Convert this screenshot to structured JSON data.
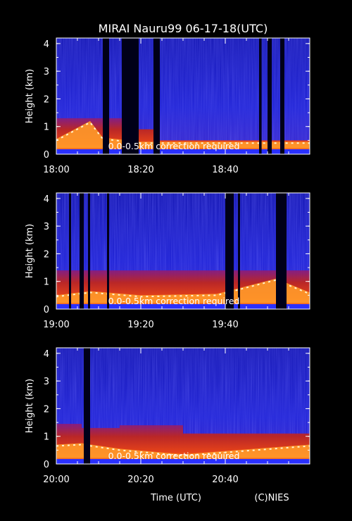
{
  "chart_data": {
    "type": "heatmap",
    "title": "MIRAI Nauru99 06-17-18(UTC)",
    "xlabel": "Time (UTC)",
    "credit": "(C)NIES",
    "colors": {
      "background": "#000000",
      "text": "#ffffff",
      "scale": [
        "#000010",
        "#0a0a8a",
        "#1e22d8",
        "#7a1aa0",
        "#d82a1a",
        "#ff6a14",
        "#ffd070",
        "#ffffff"
      ]
    },
    "panels": [
      {
        "ylabel": "Height (km)",
        "ylim": [
          0,
          4.2
        ],
        "yticks": [
          "0",
          "1",
          "2",
          "3",
          "4"
        ],
        "xlim": [
          "18:00",
          "19:00"
        ],
        "xticks": [
          "18:00",
          "18:20",
          "18:40"
        ],
        "annotation": "0.0-0.5km correction required",
        "gaps": [
          [
            11,
            12.5
          ],
          [
            15.5,
            19.5
          ],
          [
            23,
            24.5
          ],
          [
            48,
            48.6
          ],
          [
            50,
            51
          ],
          [
            53,
            54
          ]
        ],
        "layer_top_km": [
          [
            0,
            1.3
          ],
          [
            15,
            1.3
          ],
          [
            16,
            0.5
          ],
          [
            19.5,
            0.9
          ],
          [
            23,
            0.5
          ],
          [
            60,
            0.5
          ]
        ],
        "bright_km": [
          [
            0,
            0.55
          ],
          [
            8,
            1.2
          ],
          [
            11,
            0.6
          ],
          [
            20,
            0.45
          ],
          [
            60,
            0.45
          ]
        ]
      },
      {
        "ylabel": "Height (km)",
        "ylim": [
          0,
          4.2
        ],
        "yticks": [
          "0",
          "1",
          "2",
          "3",
          "4"
        ],
        "xlim": [
          "19:00",
          "20:00"
        ],
        "xticks": [
          "19:00",
          "19:20",
          "19:40"
        ],
        "annotation": "0.0-0.5km correction required",
        "gaps": [
          [
            3,
            3.5
          ],
          [
            5.5,
            6.5
          ],
          [
            7.5,
            8
          ],
          [
            12,
            12.5
          ],
          [
            40,
            42
          ],
          [
            43,
            43.5
          ],
          [
            52,
            54.5
          ]
        ],
        "layer_top_km": [
          [
            0,
            1.4
          ],
          [
            60,
            1.4
          ]
        ],
        "bright_km": [
          [
            0,
            0.5
          ],
          [
            8,
            0.65
          ],
          [
            20,
            0.5
          ],
          [
            38,
            0.55
          ],
          [
            52,
            1.1
          ],
          [
            60,
            0.6
          ]
        ]
      },
      {
        "ylabel": "Height (km)",
        "ylim": [
          0,
          4.2
        ],
        "yticks": [
          "0",
          "1",
          "2",
          "3",
          "4"
        ],
        "xlim": [
          "20:00",
          "21:00"
        ],
        "xticks": [
          "20:00",
          "20:20",
          "20:40"
        ],
        "annotation": "0.0-0.5km correction required",
        "gaps": [
          [
            6.5,
            8
          ]
        ],
        "layer_top_km": [
          [
            0,
            1.45
          ],
          [
            6,
            1.3
          ],
          [
            15,
            1.4
          ],
          [
            30,
            1.1
          ],
          [
            60,
            1.3
          ]
        ],
        "bright_km": [
          [
            0,
            0.7
          ],
          [
            6,
            0.75
          ],
          [
            15,
            0.55
          ],
          [
            30,
            0.35
          ],
          [
            60,
            0.7
          ]
        ]
      }
    ]
  }
}
